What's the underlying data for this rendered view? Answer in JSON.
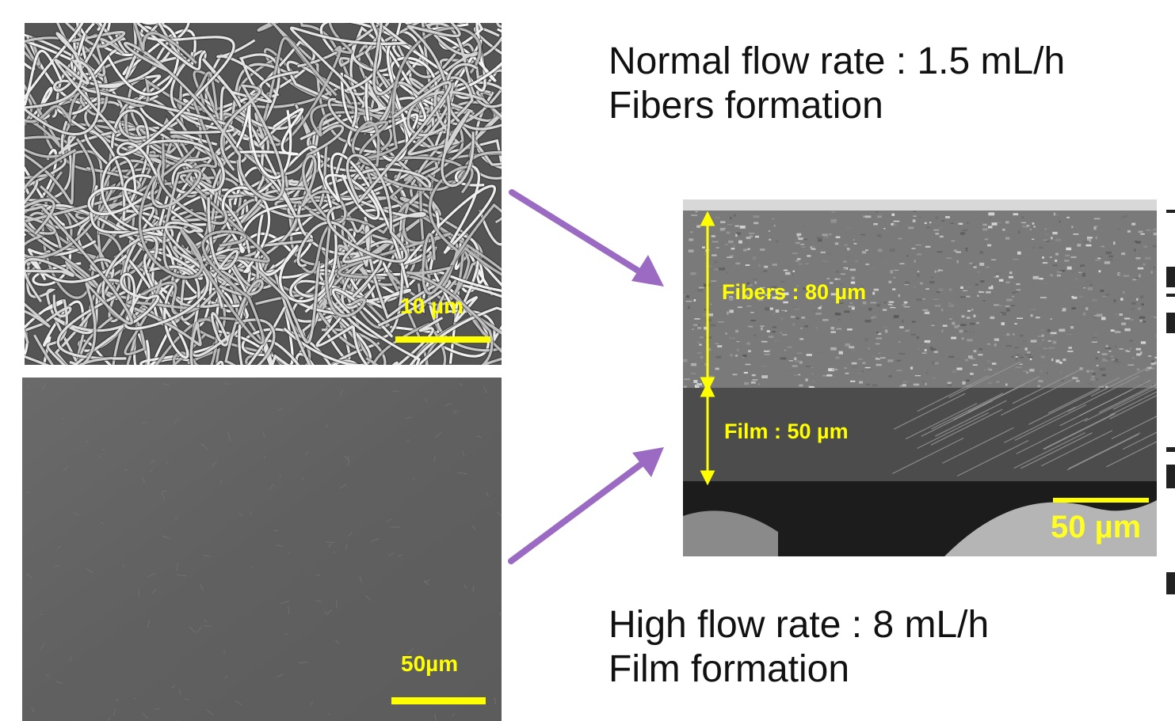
{
  "captions": {
    "normal_line1": "Normal flow rate : 1.5 mL/h",
    "normal_line2": "Fibers formation",
    "high_line1": "High flow rate : 8 mL/h",
    "high_line2": "Film formation"
  },
  "images": {
    "fibers_surface": {
      "scale_label": "10  µm"
    },
    "film_surface": {
      "scale_label": "50µm"
    },
    "cross_section": {
      "scale_label": "50 µm",
      "fibers_layer_label": "Fibers : 80 µm",
      "film_layer_label": "Film : 50 µm"
    }
  },
  "colors": {
    "arrow": "#9b6bc4",
    "annotation": "#ffff00"
  }
}
